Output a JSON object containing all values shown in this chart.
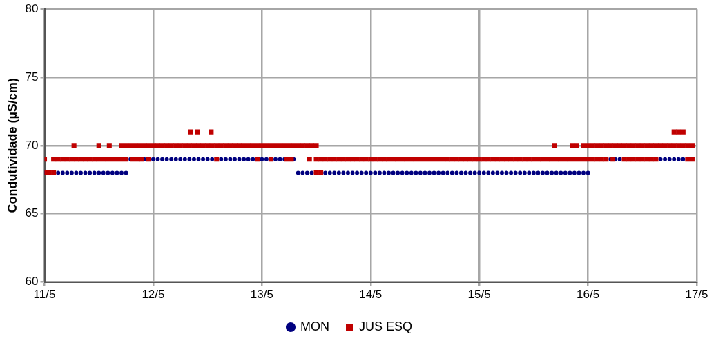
{
  "chart_data": {
    "type": "scatter",
    "ylabel": "Condutividade (µS/cm)",
    "xlim": [
      "--05-11",
      "--05-17"
    ],
    "xticks": [
      {
        "value": "--05-11",
        "label": "11/5"
      },
      {
        "value": "--05-12",
        "label": "12/5"
      },
      {
        "value": "--05-13",
        "label": "13/5"
      },
      {
        "value": "--05-14",
        "label": "14/5"
      },
      {
        "value": "--05-15",
        "label": "15/5"
      },
      {
        "value": "--05-16",
        "label": "16/5"
      },
      {
        "value": "--05-17",
        "label": "17/5"
      }
    ],
    "ylim": [
      60,
      80
    ],
    "yticks": [
      60,
      65,
      70,
      75,
      80
    ],
    "grid": true,
    "legend": "bottom",
    "series": [
      {
        "name": "MON",
        "color": "#00007f",
        "marker": "circle",
        "x": [
          "--05-11T00:00",
          "--05-11T01:00",
          "--05-11T02:00",
          "--05-11T03:00",
          "--05-11T04:00",
          "--05-11T05:00",
          "--05-11T06:00",
          "--05-11T07:00",
          "--05-11T08:00",
          "--05-11T09:00",
          "--05-11T10:00",
          "--05-11T11:00",
          "--05-11T12:00",
          "--05-11T13:00",
          "--05-11T14:00",
          "--05-11T15:00",
          "--05-11T16:00",
          "--05-11T17:00",
          "--05-11T18:00",
          "--05-11T19:00",
          "--05-11T20:00",
          "--05-11T21:00",
          "--05-11T22:00",
          "--05-11T23:00",
          "--05-12T00:00",
          "--05-12T01:00",
          "--05-12T02:00",
          "--05-12T03:00",
          "--05-12T04:00",
          "--05-12T05:00",
          "--05-12T06:00",
          "--05-12T07:00",
          "--05-12T08:00",
          "--05-12T09:00",
          "--05-12T10:00",
          "--05-12T11:00",
          "--05-12T12:00",
          "--05-12T13:00",
          "--05-12T14:00",
          "--05-12T15:00",
          "--05-12T16:00",
          "--05-12T17:00",
          "--05-12T18:00",
          "--05-12T19:00",
          "--05-12T20:00",
          "--05-12T21:00",
          "--05-12T22:00",
          "--05-12T23:00",
          "--05-13T00:00",
          "--05-13T01:00",
          "--05-13T02:00",
          "--05-13T03:00",
          "--05-13T04:00",
          "--05-13T05:00",
          "--05-13T06:00",
          "--05-13T07:00",
          "--05-13T08:00",
          "--05-13T09:00",
          "--05-13T10:00",
          "--05-13T11:00",
          "--05-13T12:00",
          "--05-13T13:00",
          "--05-13T14:00",
          "--05-13T15:00",
          "--05-13T16:00",
          "--05-13T17:00",
          "--05-13T18:00",
          "--05-13T19:00",
          "--05-13T20:00",
          "--05-13T21:00",
          "--05-13T22:00",
          "--05-13T23:00",
          "--05-14T00:00",
          "--05-14T01:00",
          "--05-14T02:00",
          "--05-14T03:00",
          "--05-14T04:00",
          "--05-14T05:00",
          "--05-14T06:00",
          "--05-14T07:00",
          "--05-14T08:00",
          "--05-14T09:00",
          "--05-14T10:00",
          "--05-14T11:00",
          "--05-14T12:00",
          "--05-14T13:00",
          "--05-14T14:00",
          "--05-14T15:00",
          "--05-14T16:00",
          "--05-14T17:00",
          "--05-14T18:00",
          "--05-14T19:00",
          "--05-14T20:00",
          "--05-14T21:00",
          "--05-14T22:00",
          "--05-14T23:00",
          "--05-15T00:00",
          "--05-15T01:00",
          "--05-15T02:00",
          "--05-15T03:00",
          "--05-15T04:00",
          "--05-15T05:00",
          "--05-15T06:00",
          "--05-15T07:00",
          "--05-15T08:00",
          "--05-15T09:00",
          "--05-15T10:00",
          "--05-15T11:00",
          "--05-15T12:00",
          "--05-15T13:00",
          "--05-15T14:00",
          "--05-15T15:00",
          "--05-15T16:00",
          "--05-15T17:00",
          "--05-15T18:00",
          "--05-15T19:00",
          "--05-15T20:00",
          "--05-15T21:00",
          "--05-15T22:00",
          "--05-15T23:00",
          "--05-16T00:00",
          "--05-16T01:00",
          "--05-16T02:00",
          "--05-16T03:00",
          "--05-16T04:00",
          "--05-16T05:00",
          "--05-16T06:00",
          "--05-16T07:00",
          "--05-16T08:00",
          "--05-16T09:00",
          "--05-16T10:00",
          "--05-16T11:00",
          "--05-16T12:00",
          "--05-16T13:00",
          "--05-16T14:00",
          "--05-16T15:00",
          "--05-16T16:00",
          "--05-16T17:00",
          "--05-16T18:00",
          "--05-16T19:00",
          "--05-16T20:00",
          "--05-16T21:00"
        ],
        "values": [
          68,
          null,
          null,
          68,
          68,
          68,
          68,
          68,
          68,
          68,
          68,
          68,
          68,
          68,
          68,
          68,
          68,
          68,
          68,
          69,
          null,
          null,
          69,
          null,
          69,
          69,
          69,
          69,
          69,
          69,
          69,
          69,
          69,
          69,
          69,
          69,
          69,
          69,
          null,
          69,
          69,
          69,
          69,
          69,
          69,
          69,
          69,
          null,
          69,
          69,
          null,
          69,
          69,
          69,
          null,
          69,
          68,
          68,
          68,
          68,
          null,
          null,
          68,
          68,
          68,
          68,
          68,
          68,
          68,
          68,
          68,
          68,
          68,
          68,
          68,
          68,
          68,
          68,
          68,
          68,
          68,
          68,
          68,
          68,
          68,
          68,
          68,
          68,
          68,
          68,
          68,
          68,
          68,
          68,
          68,
          68,
          68,
          68,
          68,
          68,
          68,
          68,
          68,
          68,
          68,
          68,
          68,
          68,
          68,
          68,
          68,
          68,
          68,
          68,
          68,
          68,
          68,
          68,
          68,
          68,
          68,
          null,
          null,
          null,
          null,
          69,
          69,
          69,
          null,
          null,
          null,
          null,
          null,
          null,
          null,
          null,
          69,
          69,
          69,
          69,
          69,
          69
        ]
      },
      {
        "name": "JUS ESQ",
        "color": "#c00000",
        "marker": "square",
        "x": [
          "--05-11T00:00",
          "--05-11T01:00",
          "--05-11T02:00",
          "--05-13T12:00",
          "--05-13T13:00",
          "--05-11T00:00",
          "--05-11T02:00",
          "--05-11T03:00",
          "--05-11T04:00",
          "--05-11T05:00",
          "--05-11T06:00",
          "--05-11T07:00",
          "--05-11T08:00",
          "--05-11T09:00",
          "--05-11T10:00",
          "--05-11T11:00",
          "--05-11T12:00",
          "--05-11T13:00",
          "--05-11T14:00",
          "--05-11T15:00",
          "--05-11T16:00",
          "--05-11T17:00",
          "--05-11T18:00",
          "--05-11T19:30",
          "--05-11T20:30",
          "--05-11T21:30",
          "--05-11T23:00",
          "--05-12T14:00",
          "--05-12T23:00",
          "--05-13T02:00",
          "--05-13T05:30",
          "--05-13T06:30",
          "--05-13T10:30",
          "--05-13T12:00",
          "--05-13T13:00",
          "--05-13T14:00",
          "--05-13T15:00",
          "--05-13T16:00",
          "--05-13T17:00",
          "--05-13T18:00",
          "--05-13T19:00",
          "--05-13T20:00",
          "--05-13T21:00",
          "--05-13T22:00",
          "--05-13T23:00",
          "--05-14T00:00",
          "--05-14T01:00",
          "--05-14T02:00",
          "--05-14T03:00",
          "--05-14T04:00",
          "--05-14T05:00",
          "--05-14T06:00",
          "--05-14T07:00",
          "--05-14T08:00",
          "--05-14T09:00",
          "--05-14T10:00",
          "--05-14T11:00",
          "--05-14T12:00",
          "--05-14T13:00",
          "--05-14T14:00",
          "--05-14T15:00",
          "--05-14T16:00",
          "--05-14T17:00",
          "--05-14T18:00",
          "--05-14T19:00",
          "--05-14T20:00",
          "--05-14T21:00",
          "--05-14T22:00",
          "--05-14T23:00",
          "--05-15T00:00",
          "--05-15T01:00",
          "--05-15T02:00",
          "--05-15T03:00",
          "--05-15T04:00",
          "--05-15T05:00",
          "--05-15T06:00",
          "--05-15T07:00",
          "--05-15T08:00",
          "--05-15T09:00",
          "--05-15T10:00",
          "--05-15T11:00",
          "--05-15T12:00",
          "--05-15T13:00",
          "--05-15T14:00",
          "--05-15T15:00",
          "--05-15T16:00",
          "--05-15T17:00",
          "--05-15T18:00",
          "--05-15T19:00",
          "--05-15T20:00",
          "--05-15T21:00",
          "--05-15T22:00",
          "--05-15T23:00",
          "--05-16T00:00",
          "--05-16T01:00",
          "--05-16T02:00",
          "--05-16T03:00",
          "--05-16T04:00",
          "--05-16T05:30",
          "--05-16T08:00",
          "--05-16T09:00",
          "--05-16T10:00",
          "--05-16T11:00",
          "--05-16T12:00",
          "--05-16T13:00",
          "--05-16T14:00",
          "--05-16T15:00",
          "--05-16T22:00",
          "--05-16T23:00",
          "--05-11T06:30",
          "--05-11T12:00",
          "--05-11T14:18",
          "--05-11T17:00",
          "--05-11T18:00",
          "--05-11T19:00",
          "--05-11T20:00",
          "--05-11T21:00",
          "--05-11T22:00",
          "--05-11T23:00",
          "--05-12T00:00",
          "--05-12T01:00",
          "--05-12T02:00",
          "--05-12T03:00",
          "--05-12T04:00",
          "--05-12T05:00",
          "--05-12T06:00",
          "--05-12T07:00",
          "--05-12T08:00",
          "--05-12T09:00",
          "--05-12T10:00",
          "--05-12T11:00",
          "--05-12T12:00",
          "--05-12T13:00",
          "--05-12T14:00",
          "--05-12T15:00",
          "--05-12T16:00",
          "--05-12T17:00",
          "--05-12T18:00",
          "--05-12T19:00",
          "--05-12T20:00",
          "--05-12T21:00",
          "--05-12T22:00",
          "--05-12T23:00",
          "--05-13T00:00",
          "--05-13T01:00",
          "--05-13T02:00",
          "--05-13T03:00",
          "--05-13T04:00",
          "--05-13T05:00",
          "--05-13T06:00",
          "--05-13T07:00",
          "--05-13T08:00",
          "--05-13T09:00",
          "--05-13T10:00",
          "--05-13T11:00",
          "--05-13T12:00",
          "--05-15T16:36",
          "--05-15T20:30",
          "--05-15T21:30",
          "--05-15T23:00",
          "--05-16T00:00",
          "--05-16T01:00",
          "--05-16T02:00",
          "--05-16T03:00",
          "--05-16T04:00",
          "--05-16T05:00",
          "--05-16T06:00",
          "--05-16T07:00",
          "--05-16T08:00",
          "--05-16T09:00",
          "--05-16T10:00",
          "--05-16T11:00",
          "--05-16T12:00",
          "--05-16T13:00",
          "--05-16T14:00",
          "--05-16T15:00",
          "--05-16T16:00",
          "--05-16T17:00",
          "--05-16T18:00",
          "--05-16T19:00",
          "--05-16T20:00",
          "--05-16T21:00",
          "--05-16T22:00",
          "--05-16T23:00",
          "--05-12T08:18",
          "--05-12T09:48",
          "--05-12T12:48",
          "--05-16T19:00",
          "--05-16T20:00",
          "--05-16T21:00"
        ],
        "values": [
          68,
          68,
          68,
          68,
          68,
          69,
          69,
          69,
          69,
          69,
          69,
          69,
          69,
          69,
          69,
          69,
          69,
          69,
          69,
          69,
          69,
          69,
          69,
          69,
          69,
          69,
          69,
          69,
          69,
          69,
          69,
          69,
          69,
          69,
          69,
          69,
          69,
          69,
          69,
          69,
          69,
          69,
          69,
          69,
          69,
          69,
          69,
          69,
          69,
          69,
          69,
          69,
          69,
          69,
          69,
          69,
          69,
          69,
          69,
          69,
          69,
          69,
          69,
          69,
          69,
          69,
          69,
          69,
          69,
          69,
          69,
          69,
          69,
          69,
          69,
          69,
          69,
          69,
          69,
          69,
          69,
          69,
          69,
          69,
          69,
          69,
          69,
          69,
          69,
          69,
          69,
          69,
          69,
          69,
          69,
          69,
          69,
          69,
          69,
          69,
          69,
          69,
          69,
          69,
          69,
          69,
          69,
          69,
          69,
          70,
          70,
          70,
          70,
          70,
          70,
          70,
          70,
          70,
          70,
          70,
          70,
          70,
          70,
          70,
          70,
          70,
          70,
          70,
          70,
          70,
          70,
          70,
          70,
          70,
          70,
          70,
          70,
          70,
          70,
          70,
          70,
          70,
          70,
          70,
          70,
          70,
          70,
          70,
          70,
          70,
          70,
          70,
          70,
          70,
          70,
          70,
          70,
          70,
          70,
          70,
          70,
          70,
          70,
          70,
          70,
          70,
          70,
          70,
          70,
          70,
          70,
          70,
          70,
          70,
          70,
          70,
          70,
          70,
          70,
          70,
          70,
          70,
          70,
          70,
          71,
          71,
          71,
          71,
          71,
          71
        ]
      }
    ]
  }
}
